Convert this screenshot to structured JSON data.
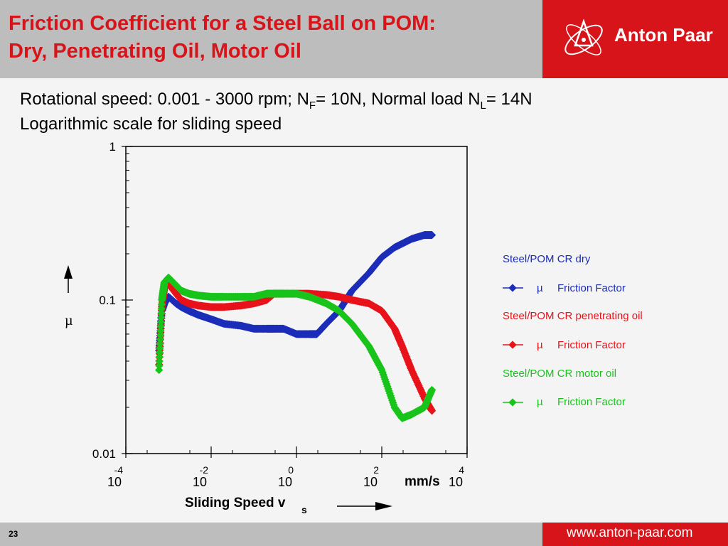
{
  "header": {
    "title_line1": "Friction Coefficient for a Steel Ball on POM:",
    "title_line2": "Dry, Penetrating Oil, Motor Oil",
    "logo_text": "Anton Paar"
  },
  "subtitle": {
    "line1_a": "Rotational speed: 0.001 - 3000 rpm; N",
    "line1_sub1": "F",
    "line1_b": "= 10N, Normal load N",
    "line1_sub2": "L",
    "line1_c": "= 14N",
    "line2": "Logarithmic scale for sliding speed"
  },
  "footer": {
    "page": "23",
    "website": "www.anton-paar.com"
  },
  "colors": {
    "brand_red": "#d7141a",
    "dry": "#1b2db8",
    "penetrating": "#e8121a",
    "motor": "#18c41a"
  },
  "chart_data": {
    "type": "scatter",
    "x_scale": "log",
    "y_scale": "log",
    "xlim": [
      0.0001,
      10000
    ],
    "ylim": [
      0.01,
      1
    ],
    "x_ticks": [
      {
        "base": "10",
        "exp": "-4"
      },
      {
        "base": "10",
        "exp": "-2"
      },
      {
        "base": "10",
        "exp": "0"
      },
      {
        "base": "10",
        "exp": "2"
      },
      {
        "base": "10",
        "exp": "4"
      }
    ],
    "y_ticks": [
      "1",
      "0.1",
      "0.01"
    ],
    "xlabel": "Sliding Speed v",
    "xlabel_sub": "s",
    "x_unit": "mm/s",
    "ylabel": "µ",
    "series": [
      {
        "name": "Steel/POM CR dry",
        "legend_item": "Friction Factor",
        "legend_symbol": "µ",
        "color": "#1b2db8",
        "x": [
          0.0006,
          0.0007,
          0.0008,
          0.001,
          0.0015,
          0.002,
          0.003,
          0.005,
          0.01,
          0.02,
          0.05,
          0.1,
          0.2,
          0.3,
          0.5,
          1,
          2,
          3,
          5,
          10,
          20,
          50,
          100,
          200,
          500,
          1000,
          1500
        ],
        "y": [
          0.047,
          0.085,
          0.095,
          0.105,
          0.095,
          0.09,
          0.085,
          0.08,
          0.075,
          0.07,
          0.068,
          0.065,
          0.065,
          0.065,
          0.065,
          0.06,
          0.06,
          0.06,
          0.07,
          0.085,
          0.115,
          0.15,
          0.19,
          0.22,
          0.25,
          0.265,
          0.265
        ]
      },
      {
        "name": "Steel/POM CR penetrating oil",
        "legend_item": "Friction Factor",
        "legend_symbol": "µ",
        "color": "#e8121a",
        "x": [
          0.0006,
          0.0007,
          0.0008,
          0.001,
          0.0015,
          0.002,
          0.003,
          0.005,
          0.01,
          0.02,
          0.05,
          0.1,
          0.2,
          0.3,
          0.5,
          1,
          2,
          5,
          10,
          20,
          50,
          100,
          200,
          300,
          500,
          1000,
          1500
        ],
        "y": [
          0.038,
          0.09,
          0.12,
          0.128,
          0.11,
          0.1,
          0.095,
          0.092,
          0.09,
          0.09,
          0.092,
          0.095,
          0.1,
          0.11,
          0.11,
          0.11,
          0.11,
          0.108,
          0.105,
          0.1,
          0.095,
          0.085,
          0.065,
          0.05,
          0.035,
          0.023,
          0.019
        ]
      },
      {
        "name": "Steel/POM CR motor oil",
        "legend_item": "Friction Factor",
        "legend_symbol": "µ",
        "color": "#18c41a",
        "x": [
          0.0006,
          0.0007,
          0.0008,
          0.001,
          0.0015,
          0.002,
          0.003,
          0.005,
          0.01,
          0.02,
          0.05,
          0.1,
          0.2,
          0.3,
          0.5,
          1,
          2,
          5,
          10,
          20,
          50,
          100,
          200,
          300,
          500,
          1000,
          1500
        ],
        "y": [
          0.035,
          0.1,
          0.13,
          0.14,
          0.125,
          0.115,
          0.11,
          0.107,
          0.105,
          0.105,
          0.105,
          0.105,
          0.11,
          0.11,
          0.11,
          0.11,
          0.105,
          0.095,
          0.085,
          0.07,
          0.05,
          0.035,
          0.02,
          0.017,
          0.018,
          0.02,
          0.026
        ]
      }
    ]
  }
}
